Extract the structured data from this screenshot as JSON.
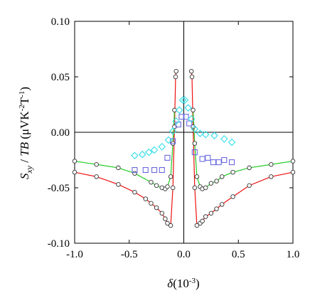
{
  "chart_data": {
    "type": "scatter",
    "xlabel": "δ(10⁻³)",
    "ylabel": "S_xy / TB (μVK⁻²T⁻¹)",
    "xlim": [
      -1.0,
      1.0
    ],
    "ylim": [
      -0.1,
      0.1
    ],
    "xticks": [
      "-1.0",
      "-0.5",
      "0.0",
      "0.5",
      "1.0"
    ],
    "yticks": [
      "0.10",
      "0.05",
      "0.00",
      "-0.05",
      "-0.10"
    ],
    "xtick_values": [
      -1.0,
      -0.5,
      0.0,
      0.5,
      1.0
    ],
    "ytick_values": [
      0.1,
      0.05,
      0.0,
      -0.05,
      -0.1
    ],
    "grid": false,
    "zero_lines": true,
    "series": [
      {
        "marker": "circle",
        "line": true,
        "line_color": "#ee1111",
        "marker_color": "#333333",
        "branches": [
          {
            "x": [
              -1.0,
              -0.8,
              -0.6,
              -0.45,
              -0.35,
              -0.3,
              -0.25,
              -0.2,
              -0.17,
              -0.15,
              -0.12,
              -0.1,
              -0.085,
              -0.075,
              -0.07
            ],
            "y": [
              -0.036,
              -0.04,
              -0.047,
              -0.054,
              -0.06,
              -0.064,
              -0.068,
              -0.073,
              -0.078,
              -0.082,
              -0.084,
              -0.05,
              0.005,
              0.05,
              0.055
            ]
          },
          {
            "x": [
              0.07,
              0.075,
              0.085,
              0.1,
              0.12,
              0.15,
              0.17,
              0.2,
              0.25,
              0.3,
              0.35,
              0.45,
              0.6,
              0.8,
              1.0
            ],
            "y": [
              0.055,
              0.05,
              0.005,
              -0.05,
              -0.084,
              -0.082,
              -0.08,
              -0.076,
              -0.073,
              -0.069,
              -0.065,
              -0.058,
              -0.048,
              -0.04,
              -0.036
            ]
          }
        ]
      },
      {
        "marker": "circle",
        "line": true,
        "line_color": "#22cc22",
        "marker_color": "#333333",
        "branches": [
          {
            "x": [
              -1.0,
              -0.8,
              -0.6,
              -0.45,
              -0.3,
              -0.25,
              -0.2,
              -0.17,
              -0.15,
              -0.12,
              -0.1,
              -0.085
            ],
            "y": [
              -0.026,
              -0.029,
              -0.032,
              -0.037,
              -0.045,
              -0.048,
              -0.05,
              -0.051,
              -0.049,
              -0.04,
              -0.01,
              0.02
            ]
          },
          {
            "x": [
              0.085,
              0.1,
              0.12,
              0.15,
              0.17,
              0.2,
              0.25,
              0.3,
              0.35,
              0.45,
              0.6,
              0.8,
              1.0
            ],
            "y": [
              0.02,
              -0.01,
              -0.04,
              -0.049,
              -0.051,
              -0.05,
              -0.046,
              -0.044,
              -0.04,
              -0.036,
              -0.032,
              -0.029,
              -0.026
            ]
          }
        ]
      },
      {
        "marker": "square",
        "line": false,
        "marker_color": "#6a6ae0",
        "branches": [
          {
            "x": [
              -0.45,
              -0.35,
              -0.27,
              -0.2,
              -0.15,
              -0.1,
              -0.05,
              -0.02
            ],
            "y": [
              -0.034,
              -0.034,
              -0.034,
              -0.034,
              -0.023,
              -0.008,
              0.007,
              0.014
            ]
          },
          {
            "x": [
              0.02,
              0.05,
              0.1,
              0.17,
              0.22,
              0.27,
              0.32,
              0.37,
              0.44
            ],
            "y": [
              0.014,
              0.008,
              -0.018,
              -0.024,
              -0.023,
              -0.027,
              -0.027,
              -0.025,
              -0.027
            ]
          }
        ]
      },
      {
        "marker": "diamond",
        "line": false,
        "marker_color": "#33dde8",
        "branches": [
          {
            "x": [
              -0.45,
              -0.38,
              -0.32,
              -0.27,
              -0.2,
              -0.14,
              -0.1,
              -0.07,
              -0.04,
              -0.01
            ],
            "y": [
              -0.021,
              -0.02,
              -0.018,
              -0.016,
              -0.013,
              -0.007,
              0.001,
              0.01,
              0.02,
              0.029
            ]
          },
          {
            "x": [
              0.01,
              0.04,
              0.07,
              0.1,
              0.15,
              0.2,
              0.28,
              0.37,
              0.44
            ],
            "y": [
              0.029,
              0.022,
              0.012,
              0.003,
              -0.001,
              -0.002,
              -0.003,
              -0.006,
              -0.009
            ]
          }
        ]
      }
    ]
  }
}
